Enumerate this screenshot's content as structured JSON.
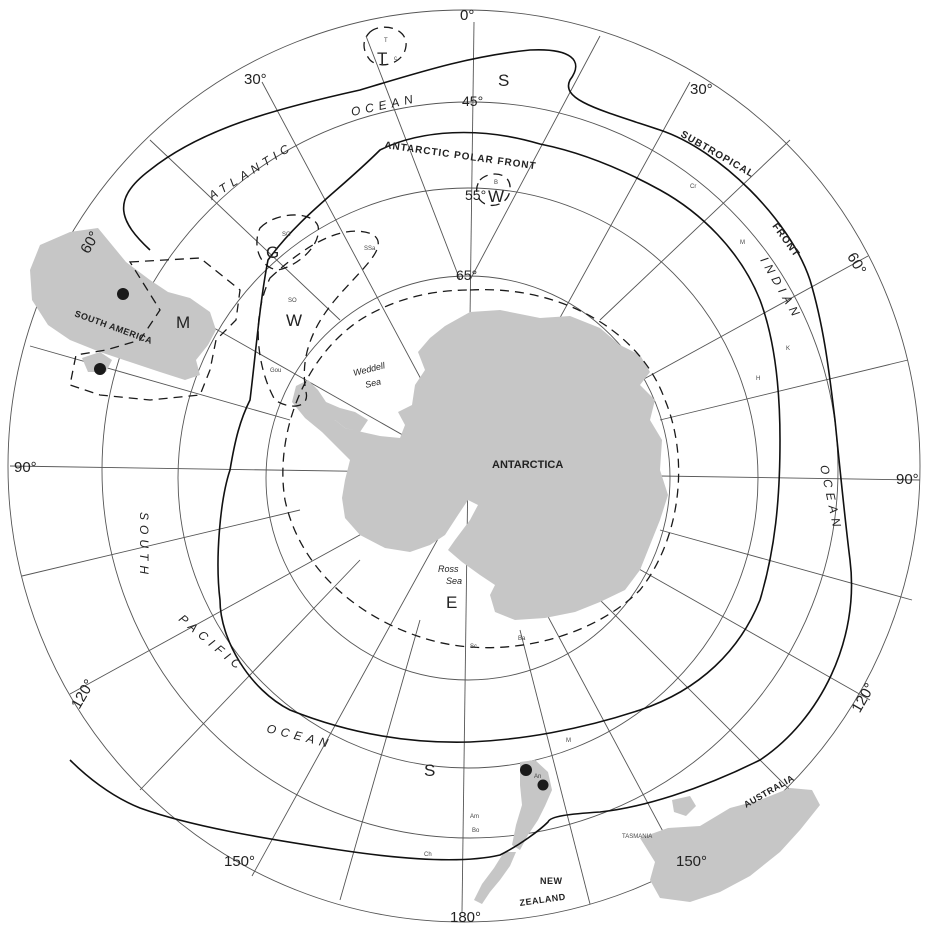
{
  "longitude_labels": {
    "lon_0": "0°",
    "lon_30w": "30°",
    "lon_30e": "30°",
    "lon_60w": "60°",
    "lon_60e": "60°",
    "lon_90w": "90°",
    "lon_90e": "90°",
    "lon_120w": "120°",
    "lon_120e": "120°",
    "lon_150w": "150°",
    "lon_150e": "150°",
    "lon_180": "180°"
  },
  "latitude_labels": {
    "lat_45": "45°",
    "lat_55": "55°",
    "lat_65": "65°"
  },
  "landmass_labels": {
    "antarctica": "ANTARCTICA",
    "south_america": "SOUTH AMERICA",
    "new_zealand_1": "NEW",
    "new_zealand_2": "ZEALAND",
    "australia": "AUSTRALIA",
    "tasmania": "TASMANIA"
  },
  "ocean_labels": {
    "atlantic": "ATLANTIC",
    "atlantic_ocean": "OCEAN",
    "indian": "INDIAN",
    "indian_ocean": "OCEAN",
    "south": "SOUTH",
    "pacific": "PACIFIC",
    "pacific_ocean": "OCEAN"
  },
  "sea_labels": {
    "weddell_1": "Weddell",
    "weddell_2": "Sea",
    "ross_1": "Ross",
    "ross_2": "Sea"
  },
  "front_labels": {
    "polar_front": "ANTARCTIC POLAR FRONT",
    "subtropical": "SUBTROPICAL",
    "front": "FRONT"
  },
  "region_letters": {
    "s_north": "S",
    "s_south": "S",
    "m": "M",
    "w_west": "W",
    "w_east": "W",
    "g": "G",
    "t": "T",
    "e": "E"
  },
  "small_labels": {
    "sg": "SG",
    "so": "SO",
    "ssa": "SSa",
    "gou": "Gou",
    "tc": "c",
    "tt": "T",
    "b": "B",
    "mc": "M",
    "sc": "Sc",
    "ba": "Ba",
    "am": "Am",
    "ch": "Ch",
    "an": "An",
    "bo": "Bo",
    "cr": "Cr",
    "k": "K",
    "m_islands": "M",
    "h": "H"
  },
  "colors": {
    "land": "#c6c6c6",
    "lines": "#1a1a1a",
    "grid": "#555555",
    "dots": "#1a1a1a"
  }
}
